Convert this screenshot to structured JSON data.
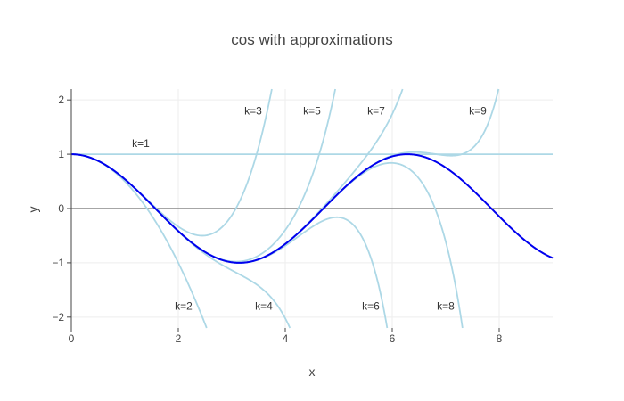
{
  "chart_data": {
    "type": "line",
    "title": "cos with approximations",
    "xlabel": "x",
    "ylabel": "y",
    "xlim": [
      0,
      9
    ],
    "ylim": [
      -2.2,
      2.2
    ],
    "x_ticks": [
      0,
      2,
      4,
      6,
      8
    ],
    "y_ticks": [
      2,
      1,
      0,
      -1,
      -2
    ],
    "y_tick_labels": [
      "2",
      "1",
      "0",
      "−1",
      "−2"
    ],
    "grid": true,
    "colors": {
      "main": "#0000ee",
      "approx": "#add8e6",
      "zero_line": "#888888",
      "grid": "#eeeeee"
    },
    "series": [
      {
        "function": "cos",
        "x": [
          0,
          0.5,
          1,
          1.5,
          2,
          2.5,
          3,
          3.5,
          4,
          4.5,
          5,
          5.5,
          6,
          6.5,
          7,
          7.5,
          8,
          8.5,
          9
        ],
        "y": [
          1,
          0.878,
          0.54,
          0.071,
          -0.416,
          -0.801,
          -0.99,
          -0.936,
          -0.654,
          -0.211,
          0.284,
          0.709,
          0.96,
          0.977,
          0.754,
          0.347,
          -0.146,
          -0.602,
          -0.911
        ]
      }
    ],
    "approximations": [
      {
        "label": "k=1",
        "terms": 1
      },
      {
        "label": "k=2",
        "terms": 2
      },
      {
        "label": "k=3",
        "terms": 3
      },
      {
        "label": "k=4",
        "terms": 4
      },
      {
        "label": "k=5",
        "terms": 5
      },
      {
        "label": "k=6",
        "terms": 6
      },
      {
        "label": "k=7",
        "terms": 7
      },
      {
        "label": "k=8",
        "terms": 8
      },
      {
        "label": "k=9",
        "terms": 9
      }
    ],
    "annotations": [
      {
        "text": "k=1",
        "x": 1.3,
        "y": 1.2
      },
      {
        "text": "k=2",
        "x": 2.1,
        "y": -1.8
      },
      {
        "text": "k=3",
        "x": 3.4,
        "y": 1.8
      },
      {
        "text": "k=4",
        "x": 3.6,
        "y": -1.8
      },
      {
        "text": "k=5",
        "x": 4.5,
        "y": 1.8
      },
      {
        "text": "k=6",
        "x": 5.6,
        "y": -1.8
      },
      {
        "text": "k=7",
        "x": 5.7,
        "y": 1.8
      },
      {
        "text": "k=8",
        "x": 7.0,
        "y": -1.8
      },
      {
        "text": "k=9",
        "x": 7.6,
        "y": 1.8
      }
    ]
  }
}
